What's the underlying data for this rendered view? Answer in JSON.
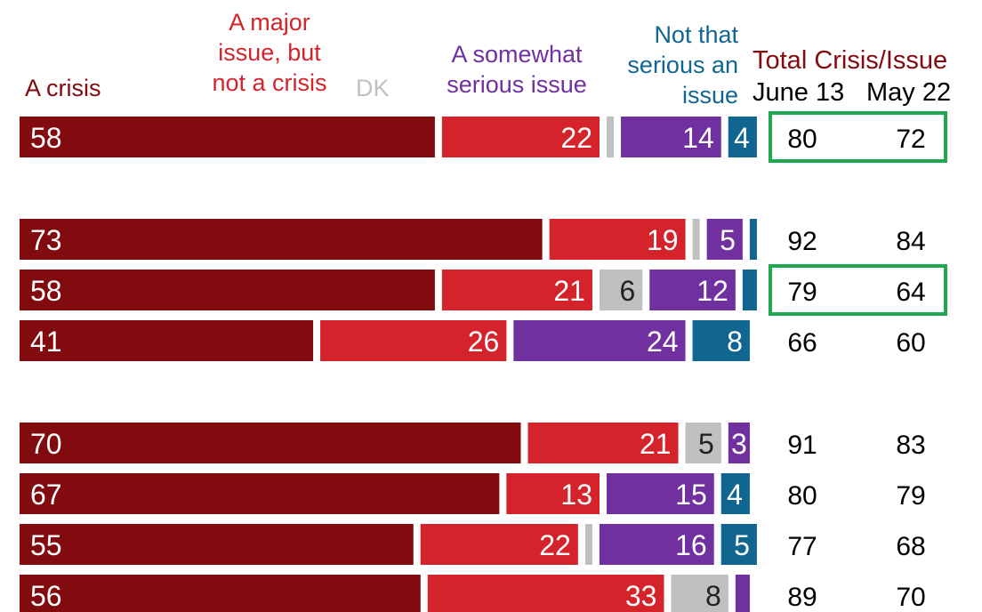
{
  "colors": {
    "crisis": "#820b10",
    "major": "#d4232b",
    "dk": "#c0c0c0",
    "somewhat": "#7030a0",
    "not_serious": "#116691",
    "highlight": "#1fa84f",
    "total_title": "#820b10"
  },
  "legend": {
    "crisis": "A crisis",
    "major": "A major\nissue, but\nnot a crisis",
    "dk": "DK",
    "somewhat": "A somewhat\nserious issue",
    "not_serious": "Not that\nserious an\nissue"
  },
  "totals_header": {
    "title": "Total Crisis/Issue",
    "june": "June 13",
    "may": "May 22"
  },
  "chart_data": {
    "type": "bar",
    "stacked": true,
    "orientation": "horizontal",
    "segments": [
      "A crisis",
      "A major issue, but not a crisis",
      "DK",
      "A somewhat serious issue",
      "Not that serious an issue"
    ],
    "rows": [
      {
        "values": [
          58,
          22,
          1,
          14,
          4
        ],
        "labels": [
          "58",
          "22",
          "",
          "14",
          "4"
        ],
        "june13": "80",
        "may22": "72",
        "highlight": true
      },
      {
        "values": [
          73,
          19,
          1,
          5,
          1
        ],
        "labels": [
          "73",
          "19",
          "",
          "5",
          ""
        ],
        "june13": "92",
        "may22": "84",
        "highlight": false
      },
      {
        "values": [
          58,
          21,
          6,
          12,
          2
        ],
        "labels": [
          "58",
          "21",
          "6",
          "12",
          ""
        ],
        "june13": "79",
        "may22": "64",
        "highlight": true
      },
      {
        "values": [
          41,
          26,
          0,
          24,
          8
        ],
        "labels": [
          "41",
          "26",
          "",
          "24",
          "8"
        ],
        "june13": "66",
        "may22": "60",
        "highlight": false
      },
      {
        "values": [
          70,
          21,
          5,
          3,
          0
        ],
        "labels": [
          "70",
          "21",
          "5",
          "3",
          ""
        ],
        "june13": "91",
        "may22": "83",
        "highlight": false
      },
      {
        "values": [
          67,
          13,
          0,
          15,
          4
        ],
        "labels": [
          "67",
          "13",
          "",
          "15",
          "4"
        ],
        "june13": "80",
        "may22": "79",
        "highlight": false
      },
      {
        "values": [
          55,
          22,
          1,
          16,
          5
        ],
        "labels": [
          "55",
          "22",
          "",
          "16",
          "5"
        ],
        "june13": "77",
        "may22": "68",
        "highlight": false
      },
      {
        "values": [
          56,
          33,
          8,
          2,
          0
        ],
        "labels": [
          "56",
          "33",
          "8",
          "",
          ""
        ],
        "june13": "89",
        "may22": "70",
        "highlight": false
      }
    ]
  }
}
